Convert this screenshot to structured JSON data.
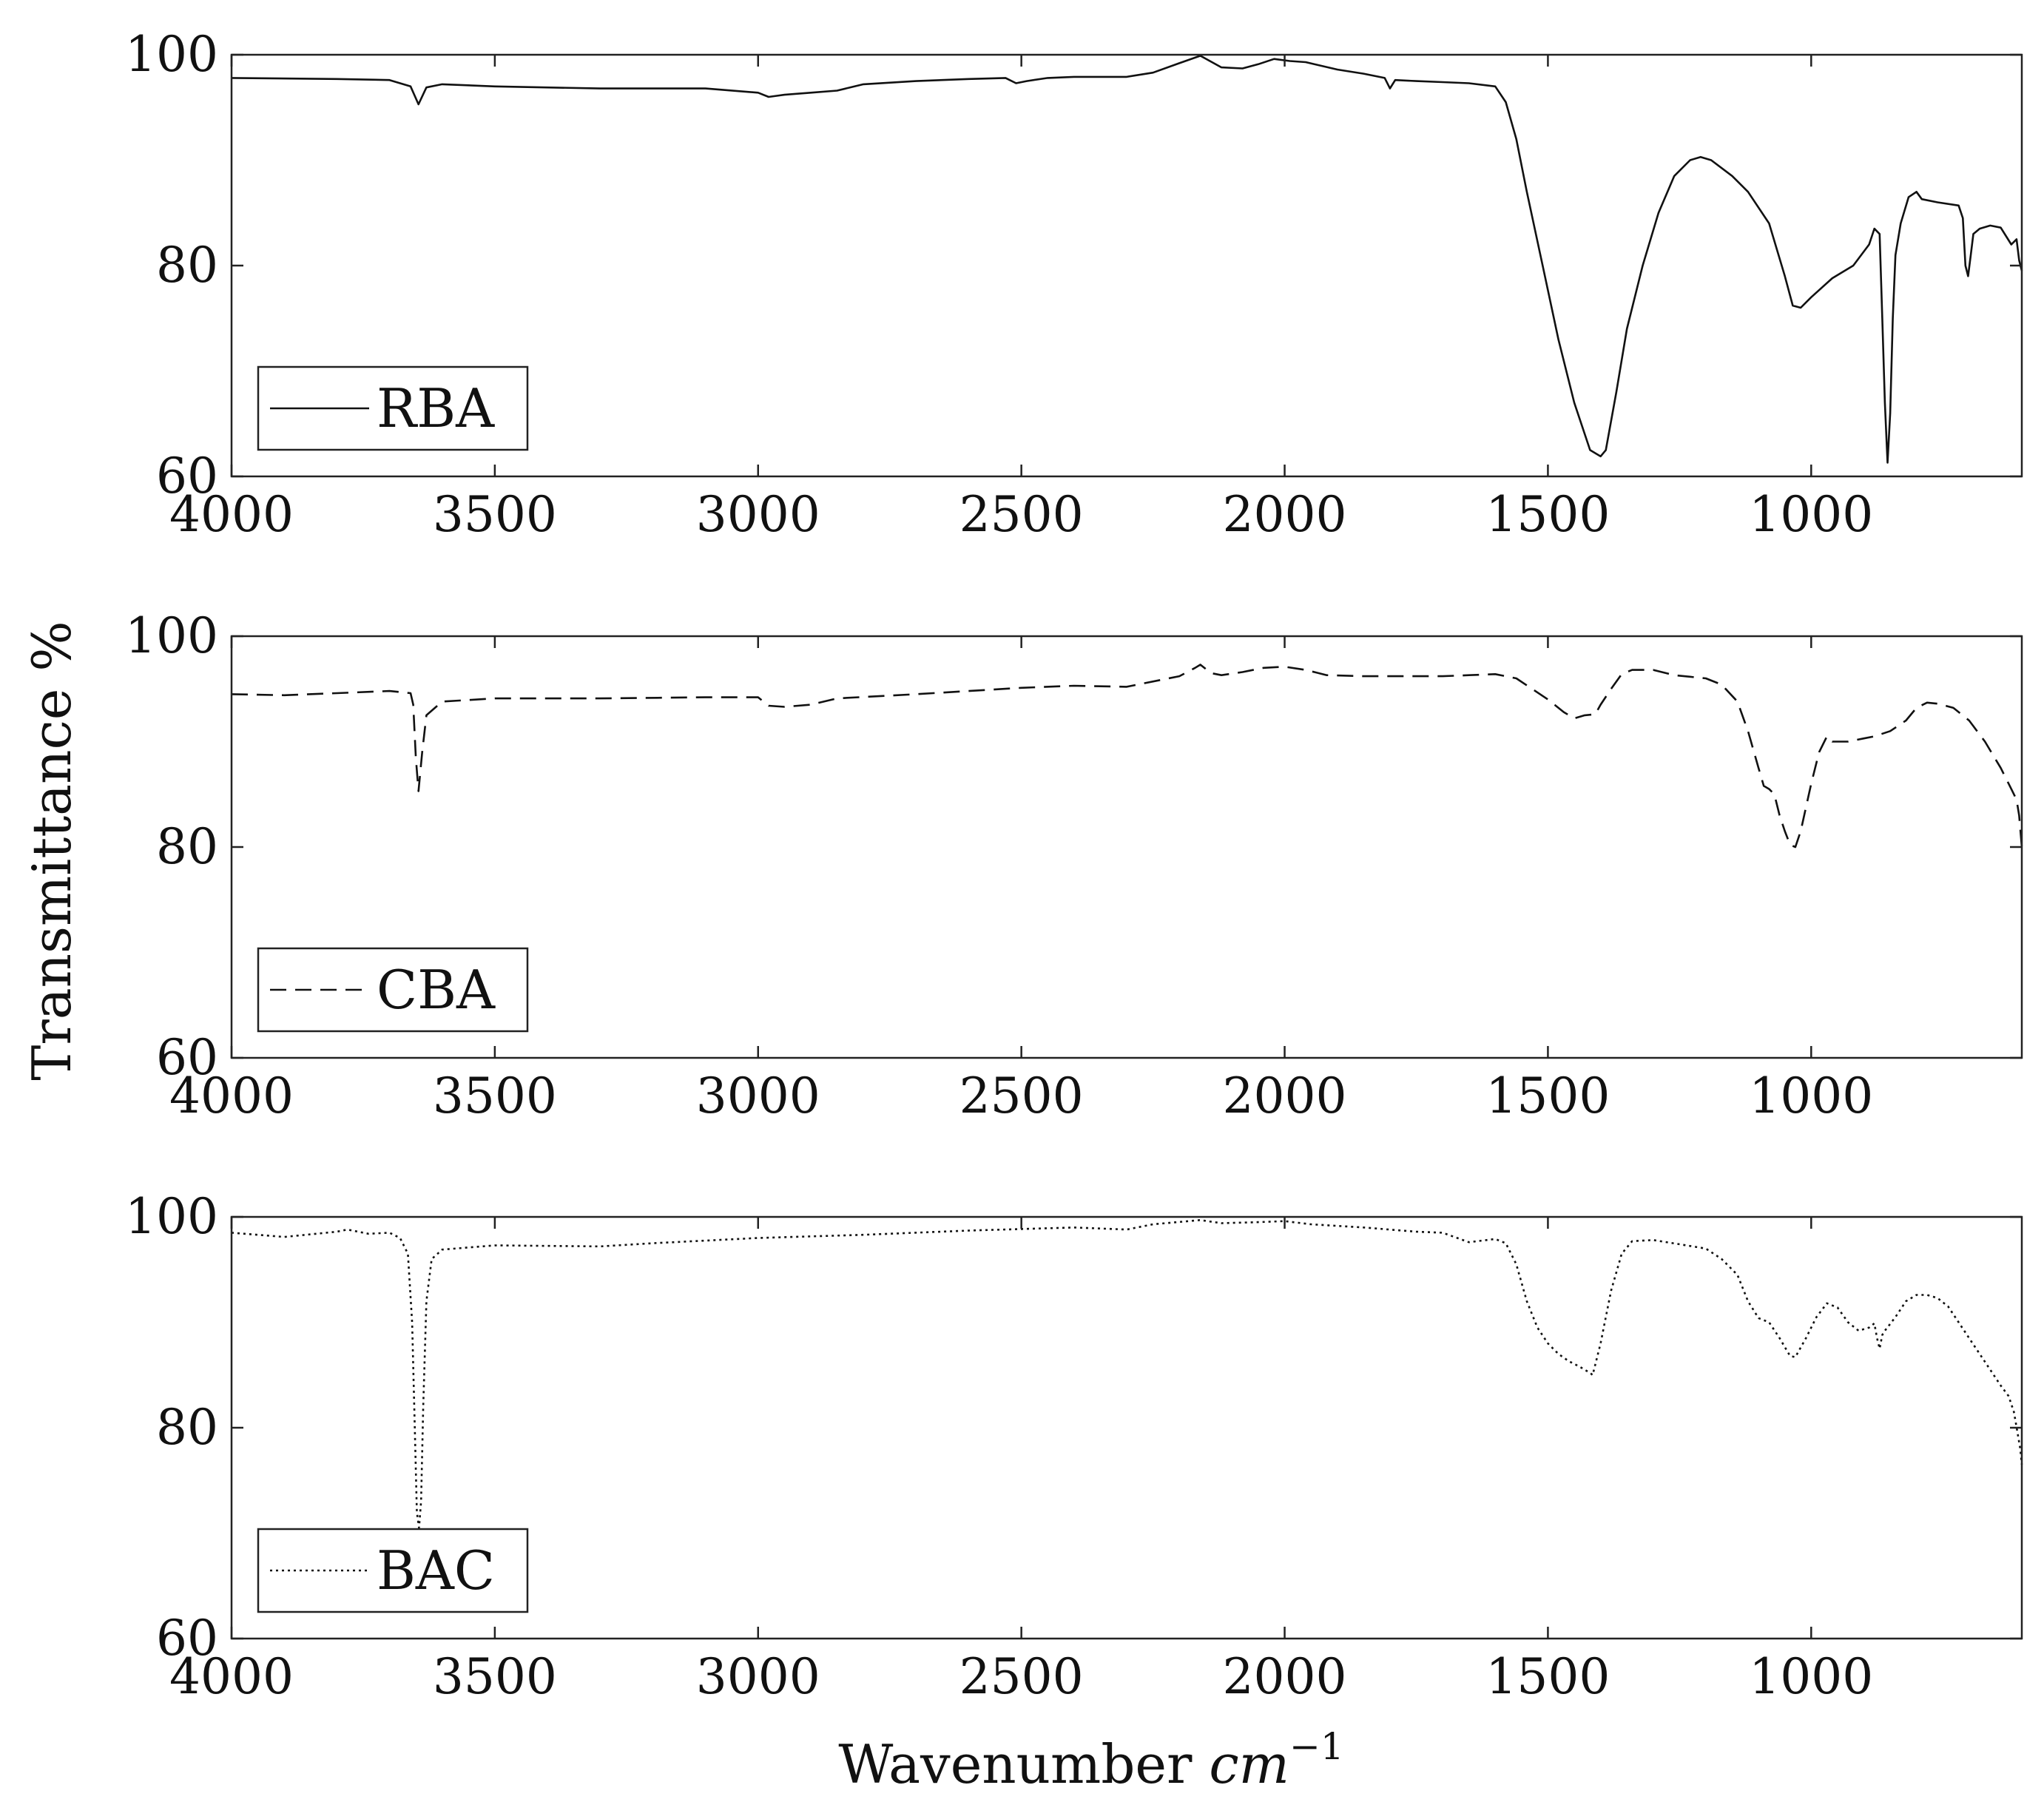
{
  "chart_data": {
    "type": "line",
    "ylabel": "Transmittance %",
    "xlabel_text": "Wavenumber",
    "xlabel_unit": "cm",
    "xlabel_exp": "−1",
    "panels": [
      {
        "legend": "RBA",
        "line_style": "solid",
        "xlim": [
          4000,
          600
        ],
        "ylim": [
          60,
          100
        ],
        "x_ticks": [
          "4000",
          "3500",
          "3000",
          "2500",
          "2000",
          "1500",
          "1000"
        ],
        "x_tick_values": [
          4000,
          3500,
          3000,
          2500,
          2000,
          1500,
          1000
        ],
        "y_ticks": [
          "60",
          "80",
          "100"
        ],
        "y_tick_values": [
          60,
          80,
          100
        ],
        "legend_position": "lower-left",
        "points": [
          [
            4000,
            97.8
          ],
          [
            3800,
            97.7
          ],
          [
            3700,
            97.6
          ],
          [
            3660,
            97.0
          ],
          [
            3645,
            95.3
          ],
          [
            3630,
            96.9
          ],
          [
            3600,
            97.2
          ],
          [
            3500,
            97.0
          ],
          [
            3300,
            96.8
          ],
          [
            3100,
            96.8
          ],
          [
            3000,
            96.4
          ],
          [
            2980,
            96.0
          ],
          [
            2950,
            96.2
          ],
          [
            2900,
            96.4
          ],
          [
            2850,
            96.6
          ],
          [
            2800,
            97.2
          ],
          [
            2700,
            97.5
          ],
          [
            2600,
            97.7
          ],
          [
            2530,
            97.8
          ],
          [
            2510,
            97.3
          ],
          [
            2490,
            97.5
          ],
          [
            2450,
            97.8
          ],
          [
            2400,
            97.9
          ],
          [
            2300,
            97.9
          ],
          [
            2250,
            98.3
          ],
          [
            2200,
            99.2
          ],
          [
            2160,
            99.9
          ],
          [
            2120,
            98.8
          ],
          [
            2080,
            98.7
          ],
          [
            2050,
            99.1
          ],
          [
            2020,
            99.6
          ],
          [
            1990,
            99.4
          ],
          [
            1960,
            99.3
          ],
          [
            1900,
            98.6
          ],
          [
            1850,
            98.2
          ],
          [
            1810,
            97.8
          ],
          [
            1800,
            96.8
          ],
          [
            1790,
            97.6
          ],
          [
            1750,
            97.5
          ],
          [
            1700,
            97.4
          ],
          [
            1650,
            97.3
          ],
          [
            1600,
            97.0
          ],
          [
            1580,
            95.5
          ],
          [
            1560,
            92.0
          ],
          [
            1540,
            87.0
          ],
          [
            1510,
            80.0
          ],
          [
            1480,
            73.0
          ],
          [
            1450,
            67.0
          ],
          [
            1420,
            62.5
          ],
          [
            1400,
            61.9
          ],
          [
            1390,
            62.5
          ],
          [
            1370,
            68.0
          ],
          [
            1350,
            74.0
          ],
          [
            1320,
            80.0
          ],
          [
            1290,
            85.0
          ],
          [
            1260,
            88.5
          ],
          [
            1230,
            90.0
          ],
          [
            1210,
            90.3
          ],
          [
            1190,
            90.0
          ],
          [
            1150,
            88.5
          ],
          [
            1120,
            87.0
          ],
          [
            1080,
            84.0
          ],
          [
            1050,
            79.0
          ],
          [
            1035,
            76.2
          ],
          [
            1020,
            76.0
          ],
          [
            1000,
            77.0
          ],
          [
            960,
            78.8
          ],
          [
            920,
            80.0
          ],
          [
            890,
            82.0
          ],
          [
            880,
            83.5
          ],
          [
            870,
            83.0
          ],
          [
            865,
            75.0
          ],
          [
            860,
            67.0
          ],
          [
            855,
            61.3
          ],
          [
            850,
            66.0
          ],
          [
            845,
            75.0
          ],
          [
            840,
            81.0
          ],
          [
            830,
            84.0
          ],
          [
            815,
            86.5
          ],
          [
            800,
            87.0
          ],
          [
            790,
            86.3
          ],
          [
            760,
            86.0
          ],
          [
            720,
            85.7
          ],
          [
            712,
            84.5
          ],
          [
            707,
            80.0
          ],
          [
            702,
            79.0
          ],
          [
            697,
            81.0
          ],
          [
            692,
            83.0
          ],
          [
            680,
            83.5
          ],
          [
            660,
            83.8
          ],
          [
            640,
            83.6
          ],
          [
            620,
            82.0
          ],
          [
            610,
            82.5
          ],
          [
            605,
            80.5
          ],
          [
            600,
            79.5
          ]
        ]
      },
      {
        "legend": "CBA",
        "line_style": "dashed",
        "xlim": [
          4000,
          600
        ],
        "ylim": [
          60,
          100
        ],
        "x_ticks": [
          "4000",
          "3500",
          "3000",
          "2500",
          "2000",
          "1500",
          "1000"
        ],
        "x_tick_values": [
          4000,
          3500,
          3000,
          2500,
          2000,
          1500,
          1000
        ],
        "y_ticks": [
          "60",
          "80",
          "100"
        ],
        "y_tick_values": [
          60,
          80,
          100
        ],
        "legend_position": "lower-left",
        "points": [
          [
            4000,
            94.5
          ],
          [
            3900,
            94.4
          ],
          [
            3800,
            94.6
          ],
          [
            3700,
            94.8
          ],
          [
            3660,
            94.6
          ],
          [
            3655,
            93.5
          ],
          [
            3650,
            88.5
          ],
          [
            3645,
            85.3
          ],
          [
            3638,
            89.0
          ],
          [
            3630,
            92.5
          ],
          [
            3600,
            93.8
          ],
          [
            3500,
            94.1
          ],
          [
            3300,
            94.1
          ],
          [
            3100,
            94.2
          ],
          [
            3000,
            94.2
          ],
          [
            2980,
            93.4
          ],
          [
            2950,
            93.3
          ],
          [
            2900,
            93.5
          ],
          [
            2850,
            94.1
          ],
          [
            2700,
            94.5
          ],
          [
            2600,
            94.8
          ],
          [
            2500,
            95.1
          ],
          [
            2400,
            95.3
          ],
          [
            2300,
            95.2
          ],
          [
            2200,
            96.2
          ],
          [
            2170,
            97.0
          ],
          [
            2160,
            97.3
          ],
          [
            2140,
            96.5
          ],
          [
            2120,
            96.3
          ],
          [
            2080,
            96.6
          ],
          [
            2040,
            97.0
          ],
          [
            2000,
            97.1
          ],
          [
            1960,
            96.8
          ],
          [
            1920,
            96.3
          ],
          [
            1850,
            96.2
          ],
          [
            1800,
            96.2
          ],
          [
            1700,
            96.2
          ],
          [
            1650,
            96.3
          ],
          [
            1600,
            96.4
          ],
          [
            1560,
            96.0
          ],
          [
            1530,
            95.0
          ],
          [
            1500,
            94.0
          ],
          [
            1470,
            92.8
          ],
          [
            1450,
            92.2
          ],
          [
            1430,
            92.5
          ],
          [
            1410,
            92.6
          ],
          [
            1400,
            93.5
          ],
          [
            1380,
            95.0
          ],
          [
            1360,
            96.4
          ],
          [
            1340,
            96.8
          ],
          [
            1300,
            96.8
          ],
          [
            1260,
            96.3
          ],
          [
            1200,
            96.0
          ],
          [
            1170,
            95.4
          ],
          [
            1140,
            93.8
          ],
          [
            1120,
            91.0
          ],
          [
            1100,
            87.5
          ],
          [
            1090,
            85.8
          ],
          [
            1080,
            85.5
          ],
          [
            1070,
            85.0
          ],
          [
            1060,
            83.0
          ],
          [
            1050,
            81.5
          ],
          [
            1040,
            80.2
          ],
          [
            1030,
            80.0
          ],
          [
            1020,
            81.5
          ],
          [
            1000,
            86.0
          ],
          [
            985,
            89.0
          ],
          [
            970,
            90.5
          ],
          [
            960,
            90.0
          ],
          [
            930,
            90.0
          ],
          [
            900,
            90.3
          ],
          [
            880,
            90.5
          ],
          [
            850,
            91.0
          ],
          [
            820,
            92.0
          ],
          [
            800,
            93.2
          ],
          [
            780,
            93.7
          ],
          [
            760,
            93.6
          ],
          [
            730,
            93.2
          ],
          [
            700,
            92.0
          ],
          [
            670,
            90.0
          ],
          [
            640,
            87.5
          ],
          [
            620,
            85.5
          ],
          [
            610,
            84.5
          ],
          [
            605,
            83.0
          ],
          [
            600,
            80.0
          ]
        ]
      },
      {
        "legend": "BAC",
        "line_style": "dotted",
        "xlim": [
          4000,
          600
        ],
        "ylim": [
          60,
          100
        ],
        "x_ticks": [
          "4000",
          "3500",
          "3000",
          "2500",
          "2000",
          "1500",
          "1000"
        ],
        "x_tick_values": [
          4000,
          3500,
          3000,
          2500,
          2000,
          1500,
          1000
        ],
        "y_ticks": [
          "60",
          "80",
          "100"
        ],
        "y_tick_values": [
          60,
          80,
          100
        ],
        "legend_position": "lower-left",
        "points": [
          [
            4000,
            98.5
          ],
          [
            3900,
            98.1
          ],
          [
            3800,
            98.6
          ],
          [
            3780,
            98.8
          ],
          [
            3740,
            98.4
          ],
          [
            3700,
            98.5
          ],
          [
            3680,
            98.0
          ],
          [
            3665,
            96.5
          ],
          [
            3657,
            90.0
          ],
          [
            3652,
            80.0
          ],
          [
            3648,
            72.0
          ],
          [
            3644,
            70.5
          ],
          [
            3640,
            73.0
          ],
          [
            3636,
            82.0
          ],
          [
            3630,
            92.0
          ],
          [
            3620,
            96.0
          ],
          [
            3600,
            96.9
          ],
          [
            3500,
            97.3
          ],
          [
            3300,
            97.2
          ],
          [
            3200,
            97.5
          ],
          [
            3000,
            98.0
          ],
          [
            2800,
            98.3
          ],
          [
            2600,
            98.7
          ],
          [
            2400,
            99.0
          ],
          [
            2300,
            98.8
          ],
          [
            2250,
            99.3
          ],
          [
            2160,
            99.7
          ],
          [
            2120,
            99.4
          ],
          [
            2050,
            99.5
          ],
          [
            2000,
            99.6
          ],
          [
            1950,
            99.3
          ],
          [
            1850,
            99.0
          ],
          [
            1750,
            98.6
          ],
          [
            1700,
            98.5
          ],
          [
            1650,
            97.6
          ],
          [
            1600,
            97.9
          ],
          [
            1580,
            97.5
          ],
          [
            1560,
            95.5
          ],
          [
            1540,
            92.0
          ],
          [
            1520,
            89.5
          ],
          [
            1500,
            88.0
          ],
          [
            1480,
            87.0
          ],
          [
            1460,
            86.3
          ],
          [
            1440,
            85.8
          ],
          [
            1420,
            85.2
          ],
          [
            1415,
            85.0
          ],
          [
            1400,
            88.0
          ],
          [
            1380,
            93.0
          ],
          [
            1360,
            96.5
          ],
          [
            1340,
            97.7
          ],
          [
            1300,
            97.8
          ],
          [
            1250,
            97.4
          ],
          [
            1200,
            97.0
          ],
          [
            1170,
            96.0
          ],
          [
            1140,
            94.5
          ],
          [
            1120,
            92.0
          ],
          [
            1100,
            90.4
          ],
          [
            1080,
            90.0
          ],
          [
            1060,
            88.5
          ],
          [
            1040,
            86.8
          ],
          [
            1030,
            86.7
          ],
          [
            1010,
            88.5
          ],
          [
            990,
            90.5
          ],
          [
            970,
            91.8
          ],
          [
            950,
            91.4
          ],
          [
            930,
            90.0
          ],
          [
            910,
            89.2
          ],
          [
            890,
            89.5
          ],
          [
            880,
            89.9
          ],
          [
            875,
            88.5
          ],
          [
            870,
            87.5
          ],
          [
            865,
            88.8
          ],
          [
            860,
            89.2
          ],
          [
            840,
            90.5
          ],
          [
            820,
            92.0
          ],
          [
            800,
            92.6
          ],
          [
            780,
            92.6
          ],
          [
            760,
            92.3
          ],
          [
            740,
            91.5
          ],
          [
            720,
            90.0
          ],
          [
            700,
            88.5
          ],
          [
            680,
            87.0
          ],
          [
            660,
            85.5
          ],
          [
            640,
            84.0
          ],
          [
            625,
            83.0
          ],
          [
            615,
            81.5
          ],
          [
            608,
            79.5
          ],
          [
            603,
            78.0
          ],
          [
            600,
            76.5
          ]
        ]
      }
    ]
  }
}
